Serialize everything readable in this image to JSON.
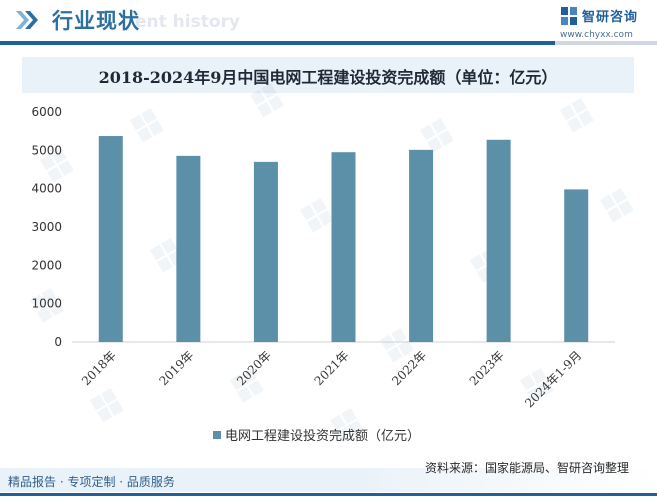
{
  "header": {
    "section_title": "行业现状",
    "watermark_text": "ent history",
    "logo_name": "智研咨询",
    "logo_url": "www.chyxx.com",
    "brand_color": "#1f5f9a",
    "icon": "double-chevron-right-icon"
  },
  "chart_data": {
    "type": "bar",
    "title": "2018-2024年9月中国电网工程建设投资完成额（单位：亿元）",
    "categories": [
      "2018年",
      "2019年",
      "2020年",
      "2021年",
      "2022年",
      "2023年",
      "2024年1-9月"
    ],
    "series": [
      {
        "name": "电网工程建设投资完成额（亿元）",
        "values": [
          5373,
          4856,
          4699,
          4951,
          5012,
          5275,
          3981
        ],
        "color": "#5b90a8"
      }
    ],
    "yticks": [
      "0",
      "1000",
      "2000",
      "3000",
      "4000",
      "5000",
      "6000"
    ],
    "ylim": [
      0,
      6000
    ],
    "xlabel": "",
    "ylabel": "",
    "grid": false,
    "legend_position": "bottom-center"
  },
  "footer": {
    "left_text": "精品报告 · 专项定制 · 品质服务",
    "source_text": "资料来源：国家能源局、智研咨询整理"
  }
}
